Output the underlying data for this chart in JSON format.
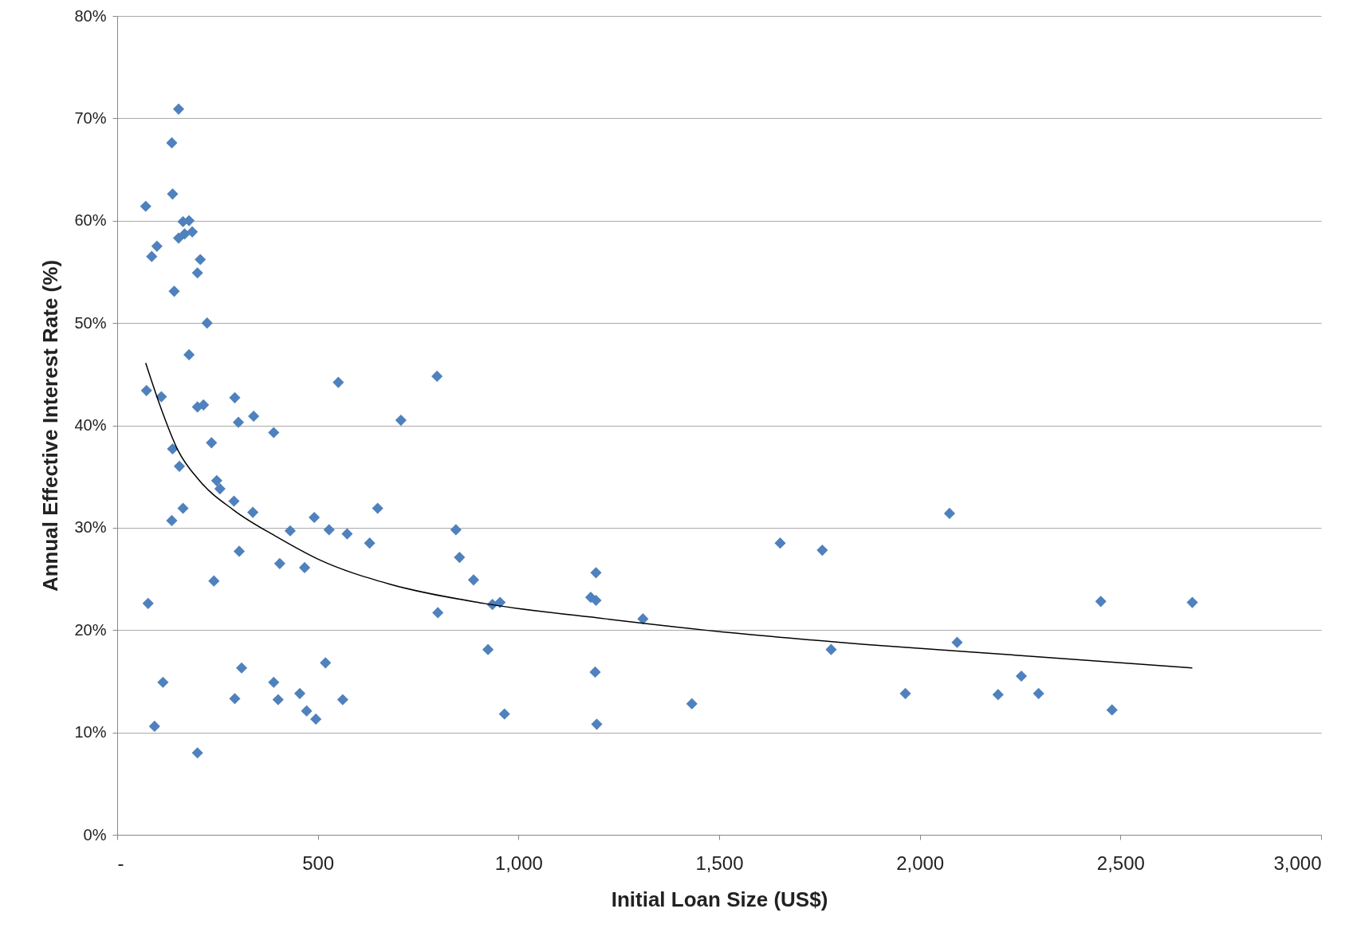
{
  "chart_data": {
    "type": "scatter",
    "xlabel": "Initial Loan Size (US$)",
    "ylabel": "Annual Effective Interest Rate (%)",
    "marker": "diamond",
    "grid": "y",
    "xlim": [
      0,
      3000
    ],
    "ylim": [
      0,
      80
    ],
    "xticks": [
      {
        "value": 0,
        "label": "-"
      },
      500,
      {
        "value": 1000,
        "label": "1,000"
      },
      {
        "value": 1500,
        "label": "1,500"
      },
      {
        "value": 2000,
        "label": "2,000"
      },
      {
        "value": 2500,
        "label": "2,500"
      },
      {
        "value": 3000,
        "label": "3,000"
      }
    ],
    "yticks": [
      {
        "value": 0,
        "label": "0%"
      },
      {
        "value": 10,
        "label": "10%"
      },
      {
        "value": 20,
        "label": "20%"
      },
      {
        "value": 30,
        "label": "30%"
      },
      {
        "value": 40,
        "label": "40%"
      },
      {
        "value": 50,
        "label": "50%"
      },
      {
        "value": 60,
        "label": "60%"
      },
      {
        "value": 70,
        "label": "70%"
      },
      {
        "value": 80,
        "label": "80%"
      }
    ],
    "series": [
      {
        "color": "#4f81bd",
        "x": [
          71,
          86,
          99,
          73,
          110,
          77,
          114,
          93,
          153,
          136,
          138,
          142,
          153,
          164,
          179,
          187,
          168,
          207,
          200,
          224,
          179,
          200,
          215,
          138,
          155,
          164,
          136,
          235,
          248,
          256,
          241,
          200,
          293,
          302,
          340,
          390,
          291,
          338,
          304,
          293,
          310,
          390,
          401,
          405,
          431,
          455,
          467,
          472,
          495,
          491,
          519,
          528,
          551,
          562,
          573,
          629,
          649,
          707,
          797,
          799,
          844,
          853,
          888,
          924,
          935,
          954,
          965,
          1180,
          1193,
          1193,
          1191,
          1195,
          1310,
          1432,
          1652,
          1757,
          1779,
          1964,
          2074,
          2093,
          2195,
          2253,
          2296,
          2451,
          2479,
          2679
        ],
        "values": [
          61.4,
          56.5,
          57.5,
          43.4,
          42.8,
          22.6,
          14.9,
          10.6,
          70.9,
          67.6,
          62.6,
          53.1,
          58.3,
          59.9,
          60.0,
          58.9,
          58.7,
          56.2,
          54.9,
          50.0,
          46.9,
          41.8,
          42.0,
          37.7,
          36.0,
          31.9,
          30.7,
          38.3,
          34.6,
          33.8,
          24.8,
          8.0,
          42.7,
          40.3,
          40.9,
          39.3,
          32.6,
          31.5,
          27.7,
          13.3,
          16.3,
          14.9,
          13.2,
          26.5,
          29.7,
          13.8,
          26.1,
          12.1,
          11.3,
          31.0,
          16.8,
          29.8,
          44.2,
          13.2,
          29.4,
          28.5,
          31.9,
          40.5,
          44.8,
          21.7,
          29.8,
          27.1,
          24.9,
          18.1,
          22.5,
          22.7,
          11.8,
          23.2,
          22.9,
          25.6,
          15.9,
          10.8,
          21.1,
          12.8,
          28.5,
          27.8,
          18.1,
          13.8,
          31.4,
          18.8,
          13.7,
          15.5,
          13.8,
          22.8,
          12.2,
          22.7
        ]
      },
      {
        "type": "line",
        "color": "#000000",
        "marker": "none",
        "x": [
          71,
          108,
          151,
          205,
          291,
          398,
          502,
          678,
          915,
          1217,
          1540,
          1863,
          2294,
          2679
        ],
        "values": [
          46.1,
          41.8,
          37.6,
          34.6,
          31.7,
          29.1,
          26.9,
          24.5,
          22.6,
          21.1,
          19.7,
          18.6,
          17.4,
          16.3
        ]
      }
    ]
  }
}
